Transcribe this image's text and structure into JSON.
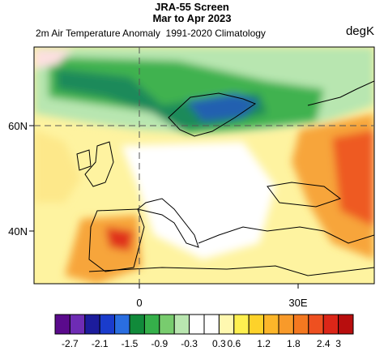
{
  "header": {
    "title_line1": "JRA-55 Screen",
    "title_line2": "Mar to Apr 2023",
    "subtitle": "2m Air Temperature Anomaly  1991-2020 Climatology",
    "unit": "degK"
  },
  "axes": {
    "lat_labels": [
      "60N",
      "40N"
    ],
    "lon_labels": [
      "0",
      "30E"
    ]
  },
  "colorbar": {
    "labels": [
      "-2.7",
      "-2.1",
      "-1.5",
      "-0.9",
      "-0.3",
      "0.3",
      "0.6",
      "1.2",
      "1.8",
      "2.4",
      "3"
    ]
  }
}
